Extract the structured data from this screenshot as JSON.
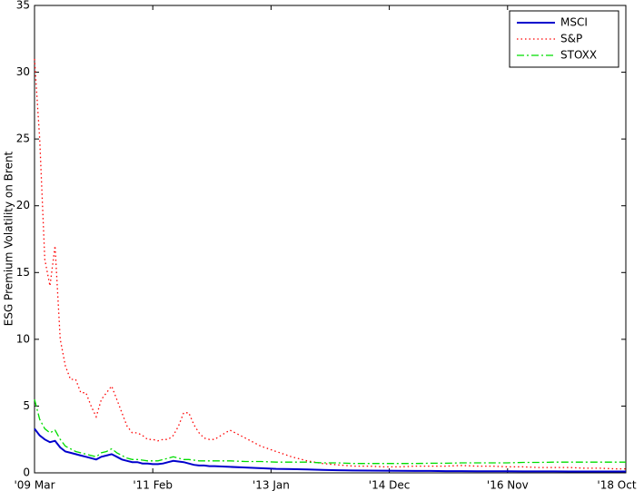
{
  "chart_data": {
    "type": "line",
    "y_label": "ESG Premium Volatility on Brent",
    "x": [
      "2009-03",
      "2009-04",
      "2009-05",
      "2009-06",
      "2009-07",
      "2009-08",
      "2009-09",
      "2009-10",
      "2009-11",
      "2009-12",
      "2010-01",
      "2010-02",
      "2010-03",
      "2010-04",
      "2010-05",
      "2010-06",
      "2010-07",
      "2010-08",
      "2010-09",
      "2010-10",
      "2010-11",
      "2010-12",
      "2011-01",
      "2011-02",
      "2011-03",
      "2011-04",
      "2011-05",
      "2011-06",
      "2011-07",
      "2011-08",
      "2011-09",
      "2011-10",
      "2011-11",
      "2011-12",
      "2012-01",
      "2012-02",
      "2012-05",
      "2012-08",
      "2012-11",
      "2013-02",
      "2013-05",
      "2013-08",
      "2013-11",
      "2014-02",
      "2014-05",
      "2014-08",
      "2014-11",
      "2015-02",
      "2015-05",
      "2015-08",
      "2015-11",
      "2016-02",
      "2016-05",
      "2016-08",
      "2016-11",
      "2017-02",
      "2017-05",
      "2017-08",
      "2017-11",
      "2018-02",
      "2018-05",
      "2018-08",
      "2018-10"
    ],
    "series": [
      {
        "name": "MSCI",
        "color": "#0000cc",
        "style": "solid",
        "values": [
          3.3,
          2.8,
          2.5,
          2.3,
          2.4,
          1.9,
          1.6,
          1.5,
          1.4,
          1.3,
          1.2,
          1.1,
          1.0,
          1.2,
          1.3,
          1.4,
          1.2,
          1.0,
          0.9,
          0.8,
          0.8,
          0.7,
          0.7,
          0.65,
          0.65,
          0.7,
          0.8,
          0.9,
          0.85,
          0.8,
          0.7,
          0.6,
          0.55,
          0.55,
          0.5,
          0.5,
          0.45,
          0.4,
          0.35,
          0.3,
          0.28,
          0.25,
          0.22,
          0.2,
          0.18,
          0.17,
          0.16,
          0.15,
          0.14,
          0.14,
          0.13,
          0.13,
          0.12,
          0.12,
          0.12,
          0.11,
          0.11,
          0.11,
          0.1,
          0.1,
          0.1,
          0.1,
          0.1
        ]
      },
      {
        "name": "S&P",
        "color": "#ff0000",
        "style": "dotted",
        "values": [
          31,
          25,
          16,
          14,
          17,
          10,
          8,
          7,
          7,
          6,
          6,
          5,
          4.2,
          5.5,
          6,
          6.5,
          5.5,
          4.5,
          3.5,
          3,
          3,
          2.8,
          2.5,
          2.5,
          2.4,
          2.5,
          2.5,
          2.8,
          3.5,
          4.5,
          4.5,
          3.6,
          3,
          2.6,
          2.5,
          2.5,
          3.2,
          2.6,
          2.0,
          1.6,
          1.2,
          0.9,
          0.7,
          0.6,
          0.5,
          0.5,
          0.45,
          0.45,
          0.5,
          0.5,
          0.5,
          0.55,
          0.5,
          0.5,
          0.45,
          0.45,
          0.4,
          0.4,
          0.4,
          0.35,
          0.35,
          0.3,
          0.3
        ]
      },
      {
        "name": "STOXX",
        "color": "#00dd00",
        "style": "dashdot",
        "values": [
          5.5,
          4,
          3.3,
          3.0,
          3.2,
          2.5,
          2.0,
          1.8,
          1.6,
          1.5,
          1.4,
          1.3,
          1.2,
          1.5,
          1.6,
          1.8,
          1.5,
          1.3,
          1.1,
          1.0,
          1.0,
          0.95,
          0.9,
          0.9,
          0.9,
          1.0,
          1.1,
          1.2,
          1.1,
          1.0,
          1.0,
          0.95,
          0.9,
          0.9,
          0.9,
          0.9,
          0.9,
          0.85,
          0.85,
          0.8,
          0.8,
          0.8,
          0.75,
          0.75,
          0.7,
          0.7,
          0.7,
          0.7,
          0.7,
          0.72,
          0.72,
          0.75,
          0.75,
          0.75,
          0.75,
          0.78,
          0.78,
          0.8,
          0.8,
          0.8,
          0.8,
          0.8,
          0.8
        ]
      }
    ],
    "xlim": [
      "2009-03",
      "2018-10"
    ],
    "xticks": [
      {
        "value": "2009-03",
        "label": "'09 Mar"
      },
      {
        "value": "2011-02",
        "label": "'11 Feb"
      },
      {
        "value": "2013-01",
        "label": "'13 Jan"
      },
      {
        "value": "2014-12",
        "label": "'14 Dec"
      },
      {
        "value": "2016-11",
        "label": "'16 Nov"
      },
      {
        "value": "2018-10",
        "label": "'18 Oct"
      }
    ],
    "ylim": [
      0,
      35
    ],
    "yticks": [
      0,
      5,
      10,
      15,
      20,
      25,
      30,
      35
    ],
    "legend": "upper right"
  }
}
